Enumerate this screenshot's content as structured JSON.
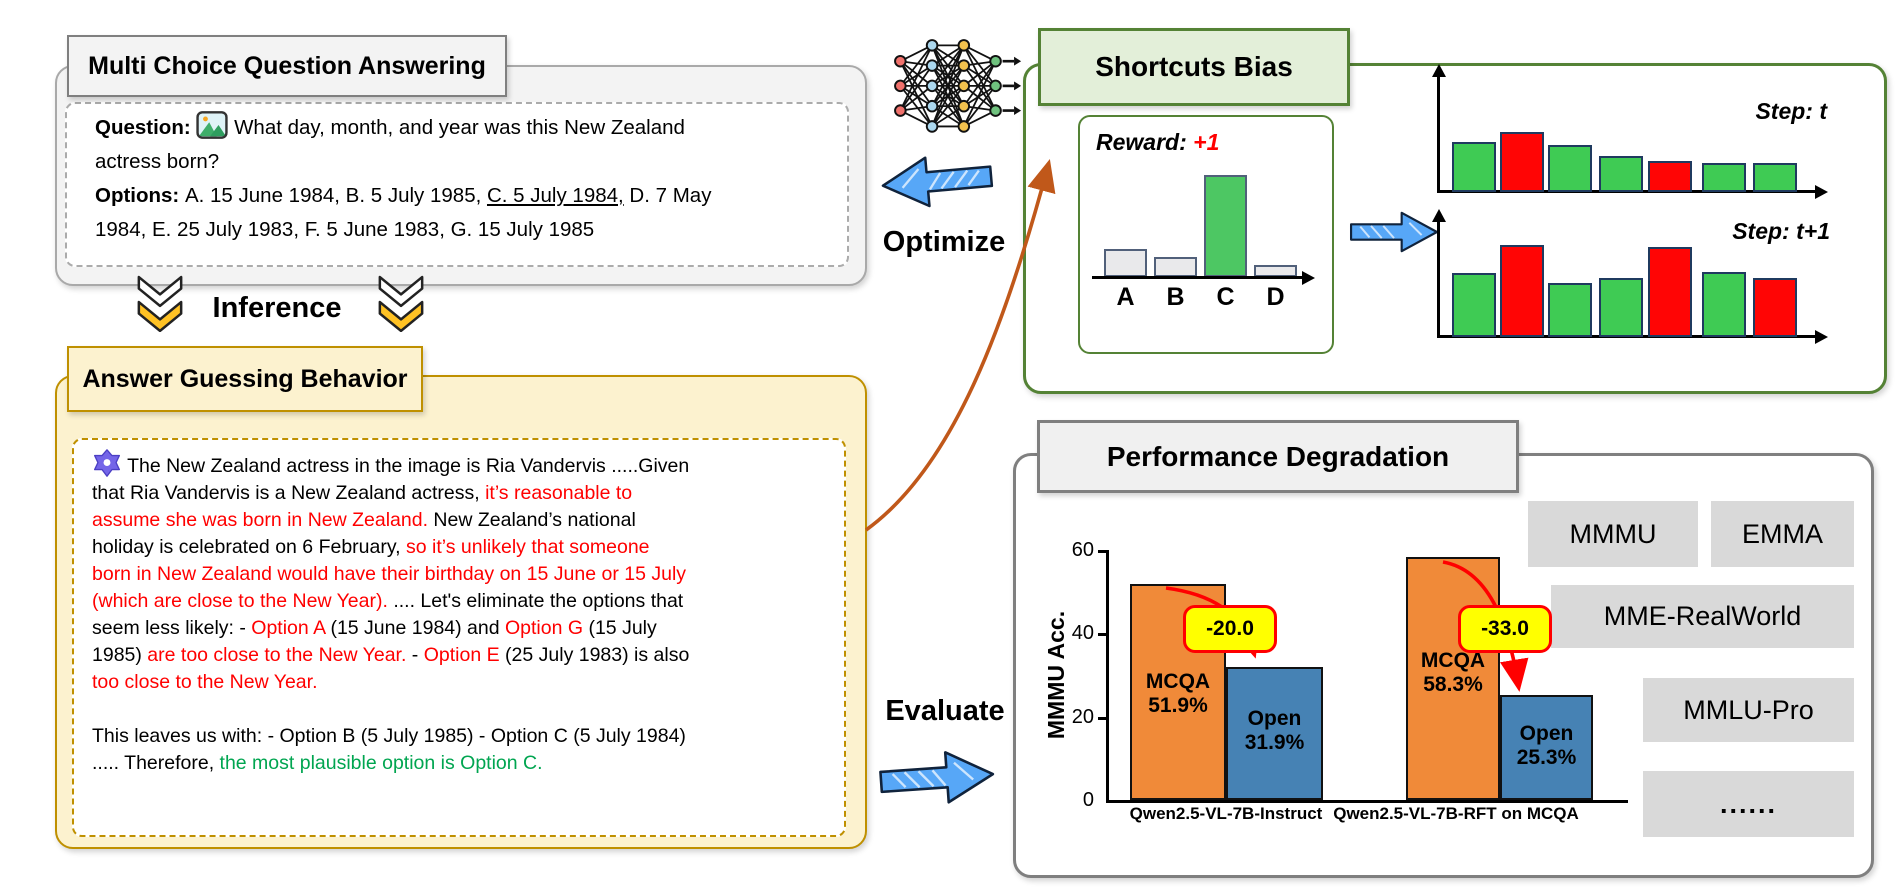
{
  "mcqa": {
    "title": "Multi Choice Question Answering",
    "lines": [
      [
        {
          "t": "Question:  ",
          "b": true
        },
        {
          "icon": "image-icon"
        },
        {
          "t": " What day, month, and year was this New Zealand"
        }
      ],
      [
        {
          "t": "actress born?"
        }
      ],
      [
        {
          "t": "Options: ",
          "b": true
        },
        {
          "t": "A. 15 June 1984, B. 5 July 1985, "
        },
        {
          "t": "C. 5 July 1984,",
          "u": true
        },
        {
          "t": " D. 7 May"
        }
      ],
      [
        {
          "t": "1984, E. 25 July 1983, F. 5 June 1983, G. 15 July 1985"
        }
      ]
    ]
  },
  "inference_label": "Inference",
  "optimize_label": "Optimize",
  "evaluate_label": "Evaluate",
  "agb": {
    "title": "Answer Guessing Behavior",
    "lines": [
      [
        {
          "icon": "qwen-icon"
        },
        {
          "t": " The New Zealand actress in the image is Ria Vandervis .....Given"
        }
      ],
      [
        {
          "t": "that Ria Vandervis is a New Zealand actress, "
        },
        {
          "t": "it’s reasonable to",
          "c": "red"
        }
      ],
      [
        {
          "t": "assume she was born in New Zealand.",
          "c": "red"
        },
        {
          "t": " New Zealand’s national"
        }
      ],
      [
        {
          "t": "holiday is celebrated on 6 February, "
        },
        {
          "t": "so it’s unlikely that someone",
          "c": "red"
        }
      ],
      [
        {
          "t": "born in New Zealand would have their birthday on 15 June or 15 July",
          "c": "red"
        }
      ],
      [
        {
          "t": "(which are close to the New Year).",
          "c": "red"
        },
        {
          "t": " .... Let's eliminate the options that"
        }
      ],
      [
        {
          "t": "seem less likely: - "
        },
        {
          "t": "Option A",
          "c": "red"
        },
        {
          "t": " (15 June 1984) and "
        },
        {
          "t": "Option G",
          "c": "red"
        },
        {
          "t": " (15 July"
        }
      ],
      [
        {
          "t": "1985) "
        },
        {
          "t": "are too close to the New Year.",
          "c": "red"
        },
        {
          "t": " - "
        },
        {
          "t": "Option E",
          "c": "red"
        },
        {
          "t": " (25 July 1983) is also"
        }
      ],
      [
        {
          "t": "too close to the New Year.",
          "c": "red"
        }
      ],
      [],
      [
        {
          "t": "This leaves us with: - Option B (5 July 1985) - Option C (5 July 1984)"
        }
      ],
      [
        {
          "t": "..... Therefore, "
        },
        {
          "t": "the most plausible option is Option C.",
          "c": "green"
        }
      ]
    ]
  },
  "shortcuts": {
    "title": "Shortcuts Bias",
    "reward_label": "Reward:",
    "reward_value": "+1",
    "reward_chart": {
      "categories": [
        "A",
        "B",
        "C",
        "D"
      ],
      "values": [
        0.27,
        0.2,
        1.0,
        0.12
      ],
      "colors": [
        "gray",
        "gray",
        "green",
        "gray"
      ]
    },
    "step_charts": [
      {
        "label": "Step: t",
        "values": [
          0.45,
          0.54,
          0.42,
          0.32,
          0.28,
          0.26,
          0.26
        ],
        "colors": [
          "green",
          "red",
          "green",
          "green",
          "red",
          "green",
          "green"
        ]
      },
      {
        "label": "Step: t+1",
        "values": [
          0.57,
          0.82,
          0.48,
          0.53,
          0.8,
          0.58,
          0.53
        ],
        "colors": [
          "green",
          "red",
          "green",
          "green",
          "red",
          "green",
          "red"
        ]
      }
    ]
  },
  "performance": {
    "title": "Performance Degradation",
    "ylabel": "MMMU Acc.",
    "yticks": [
      "0",
      "20",
      "40",
      "60"
    ],
    "ymax": 60,
    "groups": [
      {
        "x_label": "Qwen2.5-VL-7B-Instruct",
        "delta": "-20.0",
        "bars": [
          {
            "series": "MCQA",
            "value": 51.9,
            "line1": "MCQA",
            "line2": "51.9%",
            "color": "orange"
          },
          {
            "series": "Open",
            "value": 31.9,
            "line1": "Open",
            "line2": "31.9%",
            "color": "blue"
          }
        ]
      },
      {
        "x_label": "Qwen2.5-VL-7B-RFT on MCQA",
        "delta": "-33.0",
        "bars": [
          {
            "series": "MCQA",
            "value": 58.3,
            "line1": "MCQA",
            "line2": "58.3%",
            "color": "orange"
          },
          {
            "series": "Open",
            "value": 25.3,
            "line1": "Open",
            "line2": "25.3%",
            "color": "blue"
          }
        ]
      }
    ],
    "benchmarks": [
      "MMMU",
      "EMMA",
      "MME-RealWorld",
      "MMLU-Pro",
      "......"
    ]
  },
  "colors": {
    "green_border": "#548235",
    "green_fill": "#E3EFD9",
    "gold_border": "#BF9000",
    "cream": "#FCF2CF",
    "gray_box": "#F2F2F2",
    "bar_green": "#4DC763",
    "bar_red": "#FF0505",
    "bar_gray": "#E9E9EB",
    "perf_orange": "#F08A39",
    "perf_blue": "#4682B4",
    "badge_yellow": "#FFFF00",
    "red_text": "#FF0000",
    "green_text": "#00A550",
    "arrow_blue": "#57A7F7",
    "curve_orange": "#C0581A"
  },
  "chart_data": [
    {
      "id": "reward-distribution",
      "type": "bar",
      "title": "Reward: +1",
      "categories": [
        "A",
        "B",
        "C",
        "D"
      ],
      "values": [
        0.27,
        0.2,
        1.0,
        0.12
      ],
      "note": "relative answer-probability heights; C (correct, rewarded +1) is green, others gray"
    },
    {
      "id": "step-t",
      "type": "bar",
      "title": "Step: t",
      "categories": [
        "1",
        "2",
        "3",
        "4",
        "5",
        "6",
        "7"
      ],
      "values": [
        0.45,
        0.54,
        0.42,
        0.32,
        0.28,
        0.26,
        0.26
      ],
      "series_colors": [
        "green",
        "red",
        "green",
        "green",
        "red",
        "green",
        "green"
      ]
    },
    {
      "id": "step-t-plus-1",
      "type": "bar",
      "title": "Step: t+1",
      "categories": [
        "1",
        "2",
        "3",
        "4",
        "5",
        "6",
        "7"
      ],
      "values": [
        0.57,
        0.82,
        0.48,
        0.53,
        0.8,
        0.58,
        0.53
      ],
      "series_colors": [
        "green",
        "red",
        "green",
        "green",
        "red",
        "green",
        "red"
      ]
    },
    {
      "id": "mmmu-accuracy",
      "type": "bar",
      "title": "Performance Degradation",
      "categories": [
        "Qwen2.5-VL-7B-Instruct",
        "Qwen2.5-VL-7B-RFT on MCQA"
      ],
      "series": [
        {
          "name": "MCQA",
          "values": [
            51.9,
            58.3
          ]
        },
        {
          "name": "Open",
          "values": [
            31.9,
            25.3
          ]
        }
      ],
      "annotations": [
        "-20.0",
        "-33.0"
      ],
      "ylabel": "MMMU Acc.",
      "ylim": [
        0,
        60
      ],
      "yticks": [
        0,
        20,
        40,
        60
      ]
    }
  ]
}
